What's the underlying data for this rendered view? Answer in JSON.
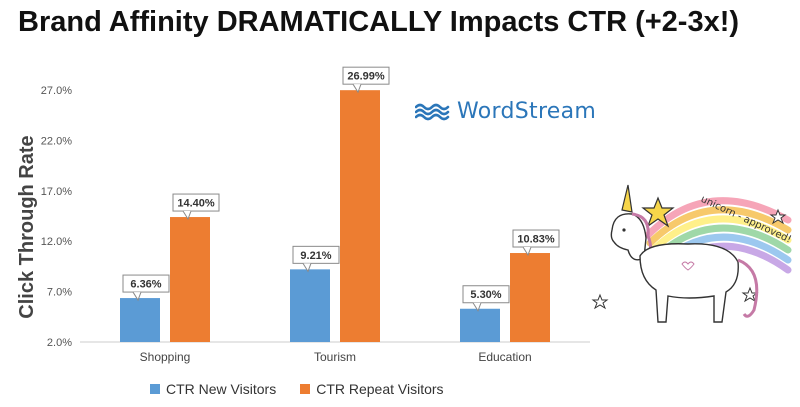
{
  "chart_data": {
    "type": "bar",
    "title": "Brand Affinity DRAMATICALLY Impacts CTR (+2-3x!)",
    "ylabel": "Click Through Rate",
    "xlabel": "",
    "categories": [
      "Shopping",
      "Tourism",
      "Education"
    ],
    "series": [
      {
        "name": "CTR New Visitors",
        "color": "#5b9bd5",
        "values": [
          6.36,
          9.21,
          5.3
        ],
        "labels": [
          "6.36%",
          "9.21%",
          "5.30%"
        ]
      },
      {
        "name": "CTR Repeat Visitors",
        "color": "#ed7d31",
        "values": [
          14.4,
          26.99,
          10.83
        ],
        "labels": [
          "14.40%",
          "26.99%",
          "10.83%"
        ]
      }
    ],
    "ylim": [
      2.0,
      28.0
    ],
    "yticks": [
      2.0,
      7.0,
      12.0,
      17.0,
      22.0,
      27.0
    ],
    "ytick_labels": [
      "2.0%",
      "7.0%",
      "12.0%",
      "17.0%",
      "22.0%",
      "27.0%"
    ],
    "grid": false,
    "legend_position": "bottom"
  },
  "logo": {
    "text": "WordStream",
    "icon": "wave-icon",
    "color": "#2b76b9"
  },
  "illustration": {
    "icon": "unicorn-icon",
    "caption": "unicorn - approved!"
  }
}
